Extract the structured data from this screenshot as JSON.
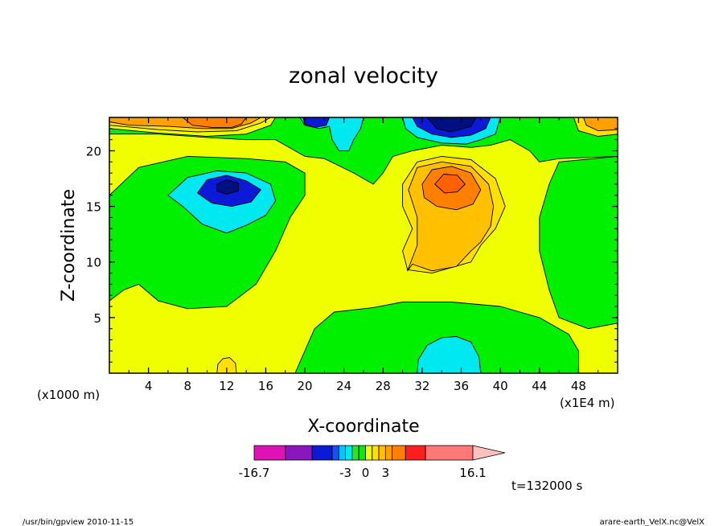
{
  "chart_data": {
    "type": "heatmap",
    "title": "zonal velocity",
    "xlabel": "X-coordinate",
    "ylabel": "Z-coordinate",
    "x_unit_left": "(x1000 m)",
    "x_unit_right": "(x1E4 m)",
    "xlim": [
      0,
      52
    ],
    "ylim": [
      0,
      23
    ],
    "x_ticks": [
      4,
      8,
      12,
      16,
      20,
      24,
      28,
      32,
      36,
      40,
      44,
      48
    ],
    "x_tick_labels": [
      "4",
      "8",
      "12",
      "16",
      "20",
      "24",
      "28",
      "32",
      "36",
      "40",
      "44",
      "48"
    ],
    "y_ticks": [
      5,
      10,
      15,
      20
    ],
    "y_tick_labels": [
      "5",
      "10",
      "15",
      "20"
    ],
    "time_label": "t=132000 s",
    "colorbar": {
      "min": -16.7,
      "max": 16.1,
      "labels": [
        {
          "value": -16.7,
          "text": "-16.7"
        },
        {
          "value": -3,
          "text": "-3"
        },
        {
          "value": 0,
          "text": "0"
        },
        {
          "value": 3,
          "text": "3"
        },
        {
          "value": 16.1,
          "text": "16.1"
        }
      ],
      "levels": [
        {
          "from": -16.7,
          "to": -12,
          "color": "#e012b4"
        },
        {
          "from": -12,
          "to": -8,
          "color": "#8a16c0"
        },
        {
          "from": -8,
          "to": -5,
          "color": "#0a1ad6"
        },
        {
          "from": -5,
          "to": -4,
          "color": "#1a4ff0"
        },
        {
          "from": -4,
          "to": -3,
          "color": "#00c8ff"
        },
        {
          "from": -3,
          "to": -2,
          "color": "#00e8f0"
        },
        {
          "from": -2,
          "to": -1,
          "color": "#30e030"
        },
        {
          "from": -1,
          "to": 0,
          "color": "#00f000"
        },
        {
          "from": 0,
          "to": 1,
          "color": "#f0ff00"
        },
        {
          "from": 1,
          "to": 2,
          "color": "#ffe000"
        },
        {
          "from": 2,
          "to": 3,
          "color": "#ffc000"
        },
        {
          "from": 3,
          "to": 4,
          "color": "#ffa000"
        },
        {
          "from": 4,
          "to": 6,
          "color": "#ff8000"
        },
        {
          "from": 6,
          "to": 9,
          "color": "#ff1e1e"
        },
        {
          "from": 9,
          "to": 16.1,
          "color": "#ff7878"
        }
      ],
      "extend_color": "#ffc0c0"
    },
    "fields": [
      {
        "name": "background",
        "color": "#f0ff00"
      },
      {
        "name": "green-left",
        "color": "#00f000",
        "points": [
          [
            0,
            16
          ],
          [
            3,
            18.5
          ],
          [
            8,
            19.5
          ],
          [
            14,
            19.3
          ],
          [
            18,
            19
          ],
          [
            20,
            18
          ],
          [
            20,
            16
          ],
          [
            18.5,
            14
          ],
          [
            17,
            11
          ],
          [
            15,
            8
          ],
          [
            12,
            6
          ],
          [
            8,
            5.8
          ],
          [
            5,
            6.5
          ],
          [
            3,
            8
          ],
          [
            1.5,
            7.5
          ],
          [
            0,
            6.5
          ]
        ]
      },
      {
        "name": "green-top",
        "color": "#00f000",
        "points": [
          [
            0,
            23
          ],
          [
            52,
            23
          ],
          [
            52,
            19.5
          ],
          [
            49,
            19.4
          ],
          [
            46,
            19.3
          ],
          [
            44,
            19
          ],
          [
            43,
            20
          ],
          [
            41,
            21
          ],
          [
            39,
            20.5
          ],
          [
            37,
            20.3
          ],
          [
            34,
            20.5
          ],
          [
            31,
            20
          ],
          [
            29,
            19.5
          ],
          [
            28,
            18
          ],
          [
            27,
            17
          ],
          [
            25,
            18
          ],
          [
            22,
            19.3
          ],
          [
            20,
            19.5
          ],
          [
            18,
            20.5
          ],
          [
            17,
            21
          ],
          [
            14,
            21
          ],
          [
            10,
            21.2
          ],
          [
            5,
            21.5
          ],
          [
            0,
            21.5
          ]
        ]
      },
      {
        "name": "green-right",
        "color": "#00f000",
        "points": [
          [
            52,
            19.5
          ],
          [
            52,
            4.5
          ],
          [
            49,
            4
          ],
          [
            46,
            5
          ],
          [
            45,
            7.5
          ],
          [
            44,
            11
          ],
          [
            44,
            14
          ],
          [
            45,
            17
          ],
          [
            46,
            19
          ]
        ]
      },
      {
        "name": "green-bottom",
        "color": "#00f000",
        "points": [
          [
            19,
            0
          ],
          [
            21,
            4
          ],
          [
            23,
            5.5
          ],
          [
            27,
            5.9
          ],
          [
            30,
            6.4
          ],
          [
            35,
            6.4
          ],
          [
            40,
            6
          ],
          [
            44,
            5
          ],
          [
            47,
            3.5
          ],
          [
            48,
            2
          ],
          [
            48,
            0
          ]
        ]
      },
      {
        "name": "cyan-left",
        "color": "#00e8f0",
        "points": [
          [
            6,
            16
          ],
          [
            8,
            17.6
          ],
          [
            11,
            18.2
          ],
          [
            14,
            18
          ],
          [
            16.5,
            17
          ],
          [
            17,
            15.5
          ],
          [
            16,
            14.2
          ],
          [
            14,
            13.3
          ],
          [
            12,
            12.6
          ],
          [
            9.5,
            13.4
          ],
          [
            7.5,
            15
          ]
        ]
      },
      {
        "name": "blue-left",
        "color": "#0a1ad6",
        "points": [
          [
            9,
            16.2
          ],
          [
            10,
            17.4
          ],
          [
            12,
            17.8
          ],
          [
            14,
            17.3
          ],
          [
            15.5,
            16.5
          ],
          [
            14.5,
            15.4
          ],
          [
            12.5,
            15
          ],
          [
            10.5,
            15.3
          ]
        ]
      },
      {
        "name": "darkblue-left",
        "color": "#001080",
        "points": [
          [
            11,
            17
          ],
          [
            12,
            17.4
          ],
          [
            13.2,
            17.1
          ],
          [
            13.2,
            16.4
          ],
          [
            12,
            16.1
          ],
          [
            11,
            16.4
          ]
        ]
      },
      {
        "name": "yellow-mid-1",
        "color": "#ffe000",
        "points": [
          [
            30,
            17
          ],
          [
            31.5,
            19
          ],
          [
            34,
            19.5
          ],
          [
            37,
            19.2
          ],
          [
            39.5,
            17.5
          ],
          [
            40.5,
            15
          ],
          [
            39.5,
            13
          ],
          [
            38,
            11.5
          ],
          [
            37,
            10
          ],
          [
            35,
            9.5
          ],
          [
            33,
            9
          ],
          [
            30.5,
            9.3
          ],
          [
            30,
            11
          ],
          [
            31,
            13
          ],
          [
            30,
            15
          ]
        ]
      },
      {
        "name": "yellow-mid-2",
        "color": "#ffc000",
        "points": [
          [
            30.5,
            9.2
          ],
          [
            31,
            9.8
          ],
          [
            33,
            9.2
          ],
          [
            35.5,
            9.6
          ],
          [
            37,
            11
          ],
          [
            38,
            11.8
          ],
          [
            39,
            13.2
          ],
          [
            39.3,
            15
          ],
          [
            38.8,
            17
          ],
          [
            37,
            18.6
          ],
          [
            34,
            19
          ],
          [
            31.5,
            18.5
          ],
          [
            30.6,
            16.5
          ],
          [
            31.5,
            14
          ],
          [
            31.5,
            11.5
          ]
        ]
      },
      {
        "name": "orange-mid",
        "color": "#ff8000",
        "points": [
          [
            32,
            17
          ],
          [
            33,
            18.3
          ],
          [
            35,
            18.6
          ],
          [
            37,
            18
          ],
          [
            38,
            16.5
          ],
          [
            37.2,
            15.2
          ],
          [
            35.5,
            14.7
          ],
          [
            33.5,
            15
          ],
          [
            32.2,
            15.8
          ]
        ]
      },
      {
        "name": "darkorange-mid",
        "color": "#ff6000",
        "points": [
          [
            33.3,
            17
          ],
          [
            34.2,
            17.9
          ],
          [
            35.6,
            17.8
          ],
          [
            36.4,
            17
          ],
          [
            35.6,
            16.3
          ],
          [
            34.3,
            16.2
          ]
        ]
      },
      {
        "name": "cyan-topmid",
        "color": "#00e8f0",
        "points": [
          [
            30,
            23
          ],
          [
            40,
            23
          ],
          [
            39.5,
            21.5
          ],
          [
            38,
            21
          ],
          [
            36.5,
            20.6
          ],
          [
            34,
            20.7
          ],
          [
            31.5,
            21.2
          ],
          [
            30.3,
            22
          ]
        ]
      },
      {
        "name": "blue-topmid",
        "color": "#0a1ad6",
        "points": [
          [
            31,
            23
          ],
          [
            39,
            23
          ],
          [
            38.5,
            22
          ],
          [
            37,
            21.4
          ],
          [
            35,
            21.2
          ],
          [
            33,
            21.5
          ],
          [
            31.5,
            22.2
          ]
        ]
      },
      {
        "name": "darkblue-topmid",
        "color": "#001080",
        "points": [
          [
            32.5,
            23
          ],
          [
            37.5,
            23
          ],
          [
            37,
            22.2
          ],
          [
            35,
            21.7
          ],
          [
            33.5,
            22
          ]
        ]
      },
      {
        "name": "cyan-top",
        "color": "#00e8f0",
        "points": [
          [
            19.5,
            23
          ],
          [
            26,
            23
          ],
          [
            25.7,
            22
          ],
          [
            25,
            21
          ],
          [
            24.5,
            20
          ],
          [
            23.5,
            20
          ],
          [
            22.8,
            21
          ],
          [
            22.5,
            22.2
          ],
          [
            21.5,
            22
          ],
          [
            20,
            22.3
          ]
        ]
      },
      {
        "name": "blue-top",
        "color": "#0a1ad6",
        "points": [
          [
            19.8,
            23
          ],
          [
            22.5,
            23
          ],
          [
            22.2,
            22.3
          ],
          [
            21,
            22.1
          ],
          [
            20,
            22.4
          ]
        ]
      },
      {
        "name": "yellow-topleft",
        "color": "#f0ff00",
        "points": [
          [
            0,
            23
          ],
          [
            17,
            23
          ],
          [
            16.5,
            22.3
          ],
          [
            14,
            21.5
          ],
          [
            10,
            21.3
          ],
          [
            5,
            21.6
          ],
          [
            0,
            22
          ]
        ]
      },
      {
        "name": "yellow2-topleft",
        "color": "#ffe000",
        "points": [
          [
            0,
            23
          ],
          [
            16.5,
            23
          ],
          [
            15.5,
            22.5
          ],
          [
            13,
            21.8
          ],
          [
            9,
            21.7
          ],
          [
            5,
            21.9
          ],
          [
            0,
            22.3
          ]
        ]
      },
      {
        "name": "orange-topleft",
        "color": "#ffa000",
        "points": [
          [
            0,
            23
          ],
          [
            15.5,
            23
          ],
          [
            14.5,
            22.5
          ],
          [
            12.5,
            22
          ],
          [
            9.5,
            22
          ],
          [
            6,
            22.2
          ],
          [
            2,
            22.3
          ],
          [
            0,
            22.6
          ]
        ]
      },
      {
        "name": "orange2-topleft",
        "color": "#ff8000",
        "points": [
          [
            7.5,
            23
          ],
          [
            14,
            23
          ],
          [
            13.5,
            22.4
          ],
          [
            12.5,
            22.1
          ],
          [
            10.5,
            22.1
          ],
          [
            8.5,
            22.3
          ]
        ]
      },
      {
        "name": "yellow-topright",
        "color": "#ffe000",
        "points": [
          [
            47.5,
            23
          ],
          [
            52,
            23
          ],
          [
            52,
            21.5
          ],
          [
            50,
            21.3
          ],
          [
            48,
            21.8
          ]
        ]
      },
      {
        "name": "orange-topright",
        "color": "#ffa000",
        "points": [
          [
            48.5,
            23
          ],
          [
            52,
            23
          ],
          [
            52,
            21.9
          ],
          [
            50,
            21.8
          ],
          [
            48.8,
            22.3
          ]
        ]
      },
      {
        "name": "cyan-bottom",
        "color": "#00e8f0",
        "points": [
          [
            31.5,
            0
          ],
          [
            38,
            0
          ],
          [
            37.8,
            1.5
          ],
          [
            37,
            2.8
          ],
          [
            35.5,
            3.3
          ],
          [
            34,
            3.2
          ],
          [
            32.5,
            2.5
          ],
          [
            31.6,
            1.2
          ]
        ]
      },
      {
        "name": "yellow-bottomleft",
        "color": "#ffe000",
        "points": [
          [
            11,
            0
          ],
          [
            13,
            0
          ],
          [
            12.9,
            0.9
          ],
          [
            12.3,
            1.4
          ],
          [
            11.6,
            1.3
          ],
          [
            11.1,
            0.8
          ]
        ]
      }
    ]
  },
  "footer": {
    "left_text": "/usr/bin/gpview  2010-11-15",
    "right_text": "arare-earth_VelX.nc@VelX"
  }
}
